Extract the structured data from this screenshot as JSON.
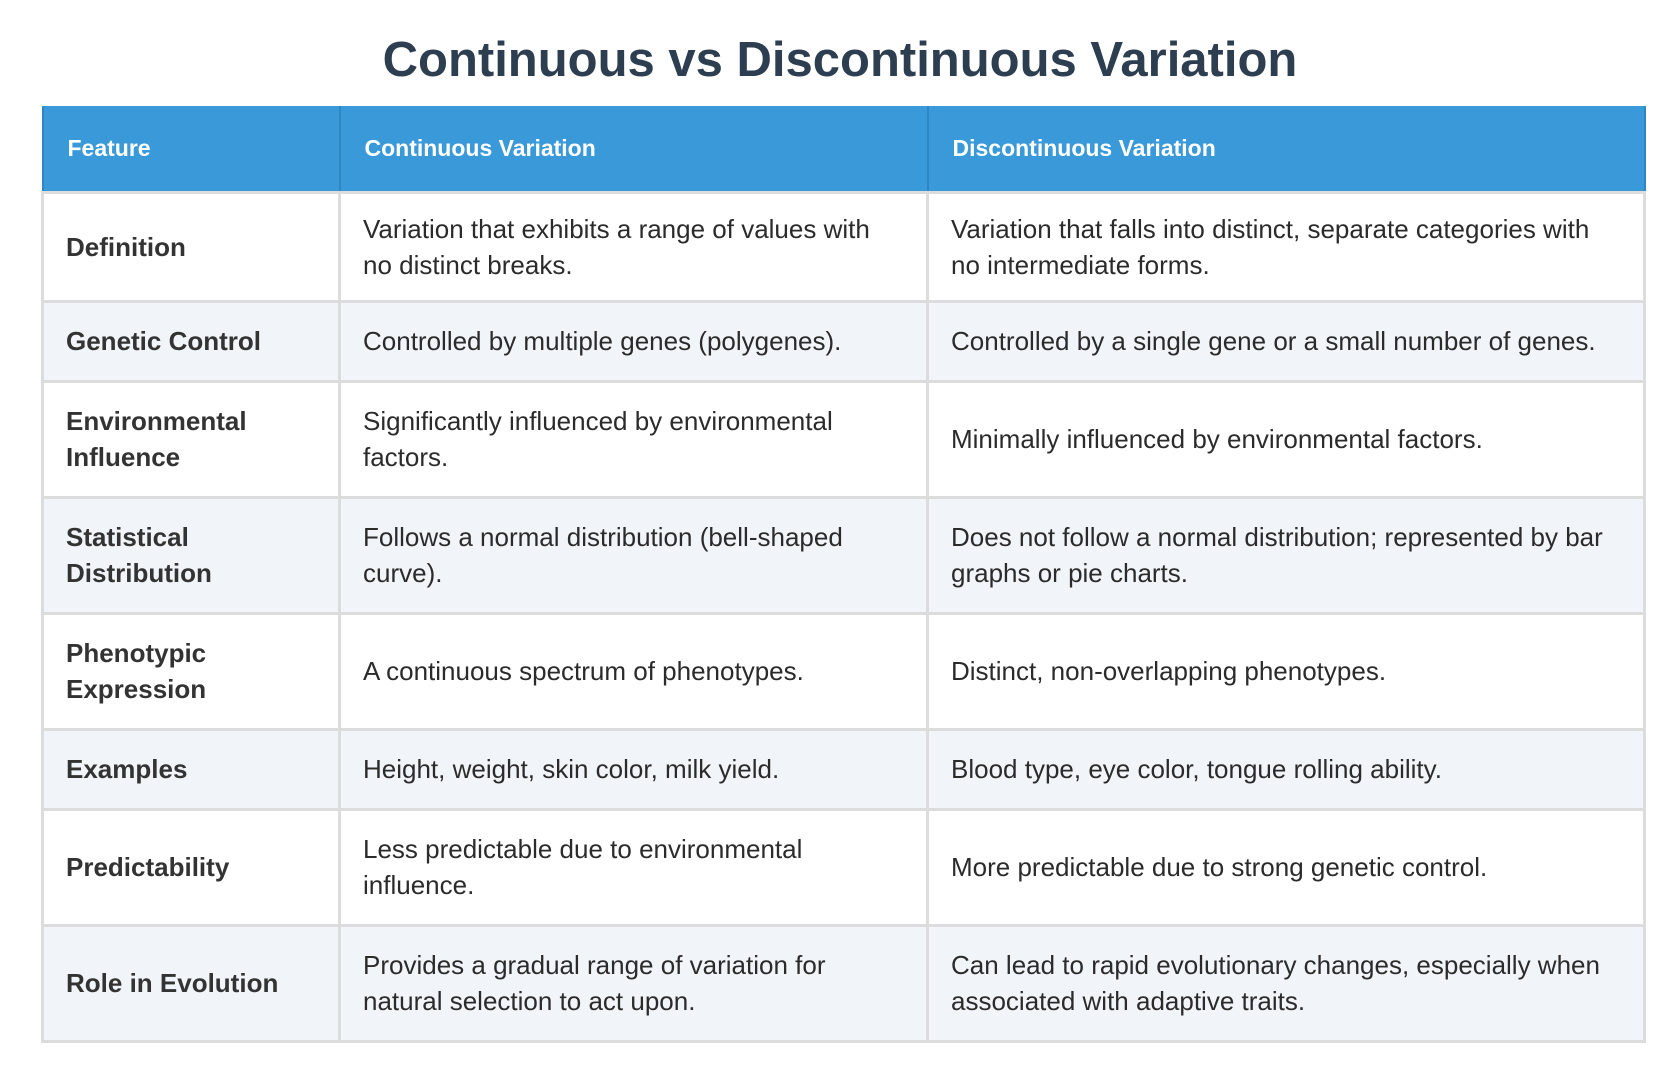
{
  "title": "Continuous vs Discontinuous Variation",
  "headers": {
    "feature": "Feature",
    "continuous": "Continuous Variation",
    "discontinuous": "Discontinuous Variation"
  },
  "rows": [
    {
      "feature": "Definition",
      "continuous": "Variation that exhibits a range of values with no distinct breaks.",
      "discontinuous": "Variation that falls into distinct, separate categories with no intermediate forms."
    },
    {
      "feature": "Genetic Control",
      "continuous": "Controlled by multiple genes (polygenes).",
      "discontinuous": "Controlled by a single gene or a small number of genes."
    },
    {
      "feature": "Environmental Influence",
      "continuous": "Significantly influenced by environmental factors.",
      "discontinuous": "Minimally influenced by environmental factors."
    },
    {
      "feature": "Statistical Distribution",
      "continuous": "Follows a normal distribution (bell-shaped curve).",
      "discontinuous": "Does not follow a normal distribution; represented by bar graphs or pie charts."
    },
    {
      "feature": "Phenotypic Expression",
      "continuous": "A continuous spectrum of phenotypes.",
      "discontinuous": "Distinct, non-overlapping phenotypes."
    },
    {
      "feature": "Examples",
      "continuous": "Height, weight, skin color, milk yield.",
      "discontinuous": "Blood type, eye color, tongue rolling ability."
    },
    {
      "feature": "Predictability",
      "continuous": "Less predictable due to environmental influence.",
      "discontinuous": "More predictable due to strong genetic control."
    },
    {
      "feature": "Role in Evolution",
      "continuous": "Provides a gradual range of variation for natural selection to act upon.",
      "discontinuous": "Can lead to rapid evolutionary changes, especially when associated with adaptive traits."
    }
  ],
  "colors": {
    "title": "#2c3e50",
    "header_bg": "#3a9ad9",
    "header_text": "#ffffff",
    "row_alt_bg": "#f1f4f9",
    "border": "#dcdcdc"
  }
}
